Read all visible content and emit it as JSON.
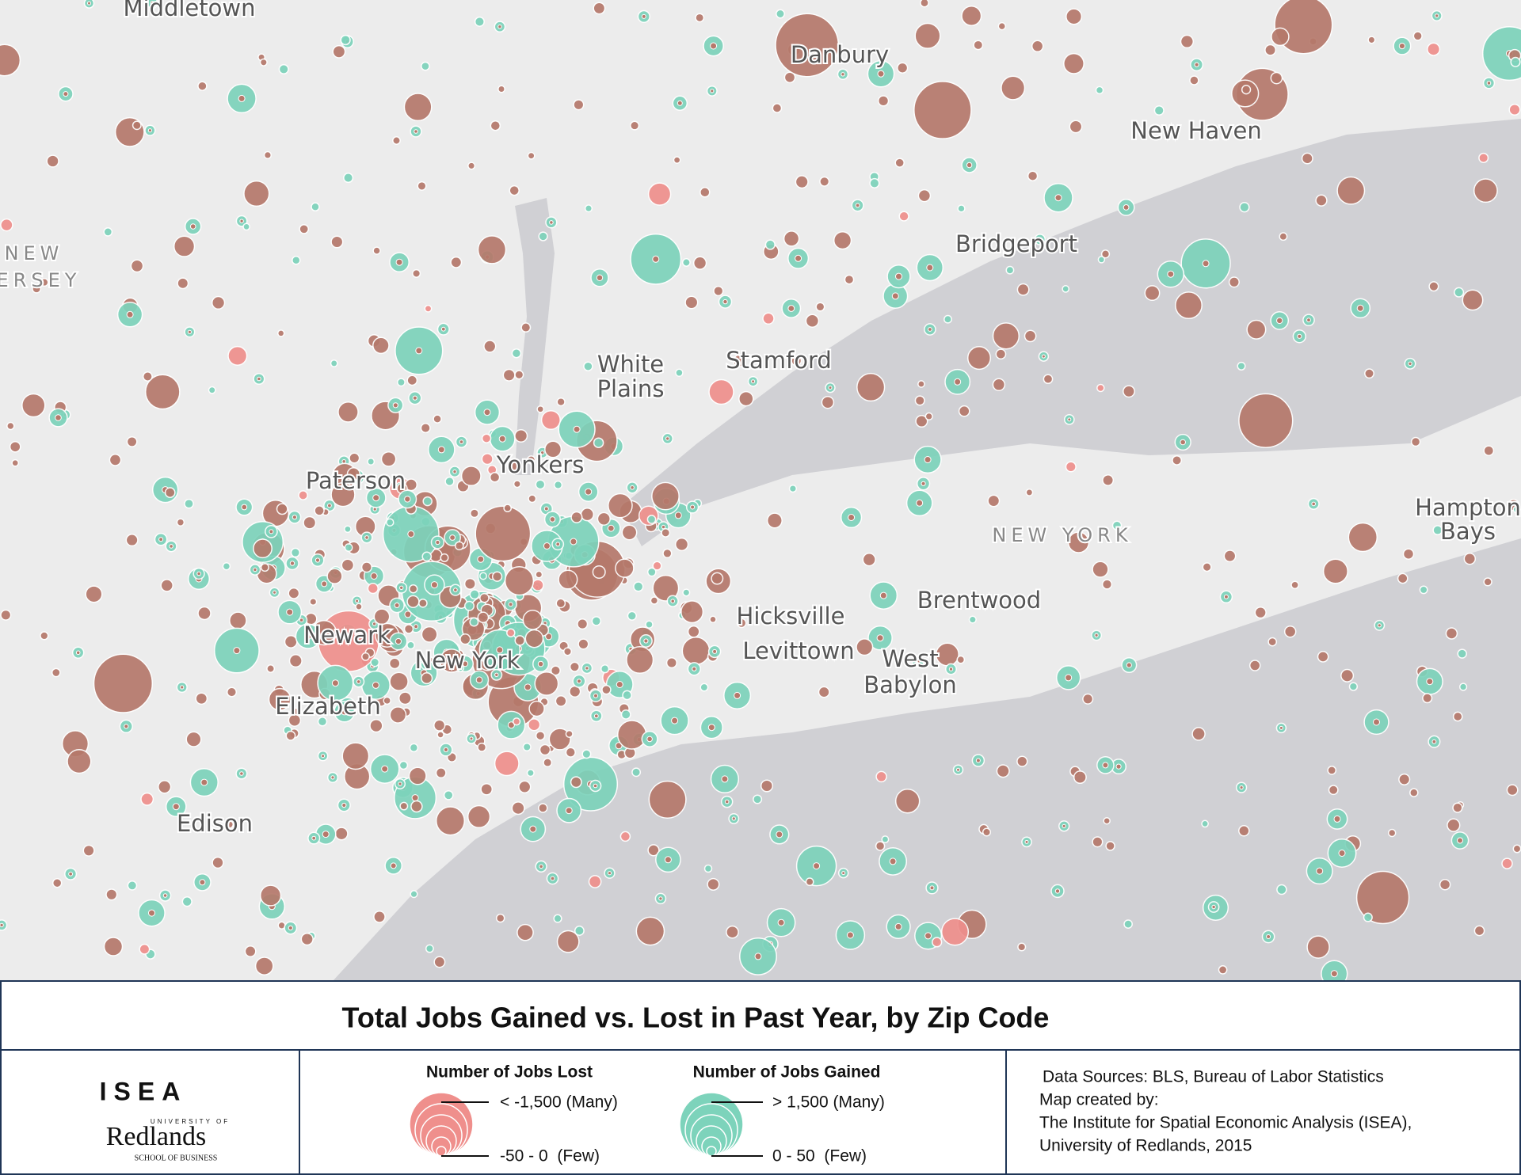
{
  "map": {
    "places": [
      "Middletown",
      "Danbury",
      "New Haven",
      "Bridgeport",
      "NEW",
      "ERSEY",
      "Stamford",
      "White",
      "Plains",
      "Yonkers",
      "Paterson",
      "Hampton",
      "Bays",
      "NEW YORK",
      "Brentwood",
      "Hicksville",
      "Levittown",
      "West",
      "Babylon",
      "Newark",
      "New York",
      "Elizabeth",
      "Edison"
    ]
  },
  "title": "Total Jobs Gained vs. Lost in Past Year, by Zip Code",
  "logo": {
    "name": "ISEA",
    "university": "UNIVERSITY OF",
    "school": "Redlands",
    "division": "SCHOOL OF BUSINESS"
  },
  "legend": {
    "lost": {
      "title": "Number of Jobs Lost",
      "many": "< -1,500 (Many)",
      "few": "-50 - 0  (Few)"
    },
    "gained": {
      "title": "Number of Jobs Gained",
      "many": "> 1,500 (Many)",
      "few": "0 - 50  (Few)"
    }
  },
  "credits": [
    "Data Sources: BLS, Bureau of Labor Statistics",
    "Map created by:",
    "The Institute for Spatial Economic Analysis (ISEA),",
    "University of Redlands, 2015"
  ]
}
